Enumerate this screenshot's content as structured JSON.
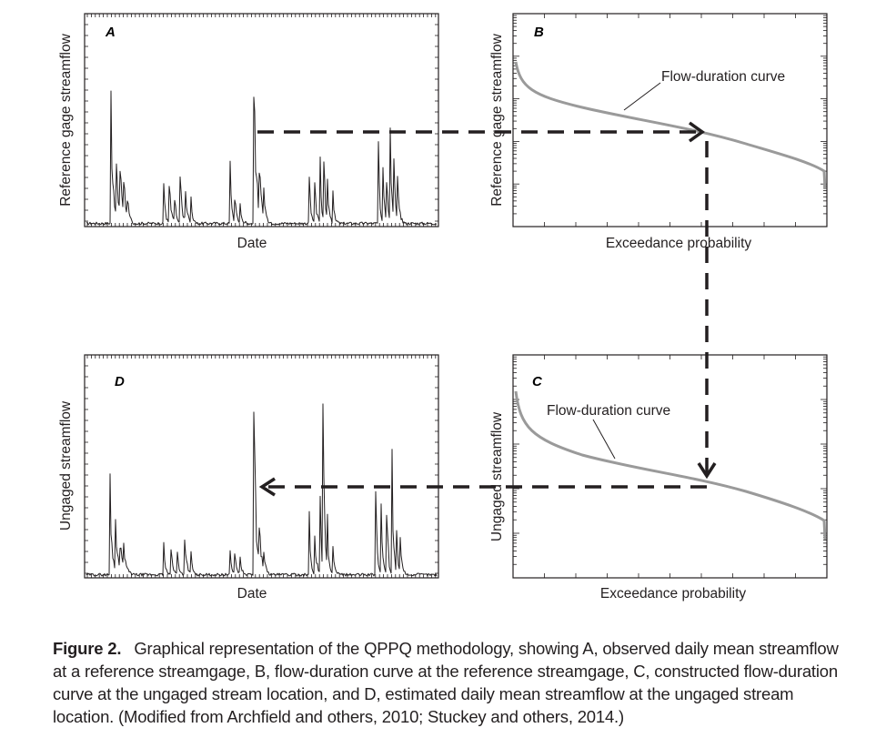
{
  "panels": {
    "A": {
      "letter": "A",
      "xlabel": "Date",
      "ylabel": "Reference gage streamflow"
    },
    "B": {
      "letter": "B",
      "xlabel": "Exceedance probability",
      "ylabel": "Reference gage streamflow",
      "curve_label": "Flow-duration curve"
    },
    "C": {
      "letter": "C",
      "xlabel": "Exceedance probability",
      "ylabel": "Ungaged streamflow",
      "curve_label": "Flow-duration curve"
    },
    "D": {
      "letter": "D",
      "xlabel": "Date",
      "ylabel": "Ungaged streamflow"
    }
  },
  "caption": {
    "label": "Figure 2.",
    "text": "Graphical representation of the QPPQ methodology, showing A, observed daily mean streamflow at a reference streamgage, B, flow-duration curve at the reference streamgage, C, constructed flow-duration curve at the ungaged stream location, and D, estimated daily mean streamflow at the ungaged stream location. (Modified from Archfield and others, 2010; Stuckey and others, 2014.)"
  },
  "colors": {
    "curve": "#9a9a9a",
    "ink": "#231f20"
  }
}
